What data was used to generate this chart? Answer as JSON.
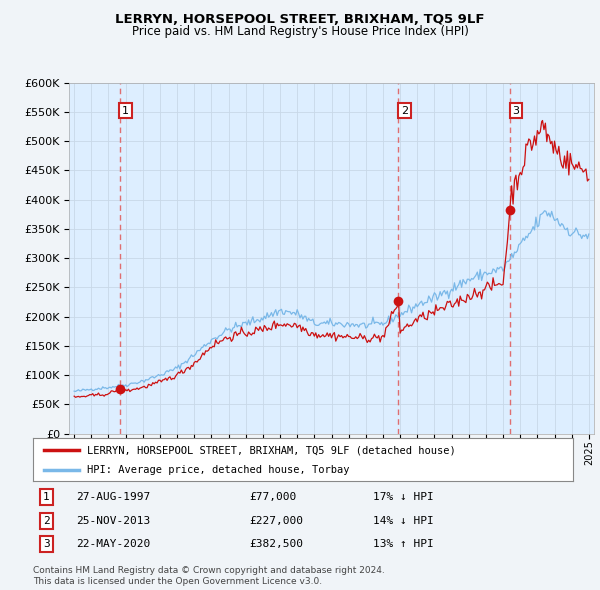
{
  "title": "LERRYN, HORSEPOOL STREET, BRIXHAM, TQ5 9LF",
  "subtitle": "Price paid vs. HM Land Registry's House Price Index (HPI)",
  "ytick_values": [
    0,
    50000,
    100000,
    150000,
    200000,
    250000,
    300000,
    350000,
    400000,
    450000,
    500000,
    550000,
    600000
  ],
  "xlim": [
    1994.7,
    2025.3
  ],
  "ylim": [
    0,
    600000
  ],
  "sale_dates": [
    1997.65,
    2013.9,
    2020.39
  ],
  "sale_prices": [
    77000,
    227000,
    382500
  ],
  "sale_labels": [
    "1",
    "2",
    "3"
  ],
  "sale_hpi_diff": [
    "17% ↓ HPI",
    "14% ↓ HPI",
    "13% ↑ HPI"
  ],
  "sale_date_strs": [
    "27-AUG-1997",
    "25-NOV-2013",
    "22-MAY-2020"
  ],
  "sale_price_strs": [
    "£77,000",
    "£227,000",
    "£382,500"
  ],
  "hpi_color": "#7ab8e8",
  "price_color": "#cc1111",
  "dashed_line_color": "#e06060",
  "legend_label_price": "LERRYN, HORSEPOOL STREET, BRIXHAM, TQ5 9LF (detached house)",
  "legend_label_hpi": "HPI: Average price, detached house, Torbay",
  "footer1": "Contains HM Land Registry data © Crown copyright and database right 2024.",
  "footer2": "This data is licensed under the Open Government Licence v3.0.",
  "background_color": "#f0f4f8",
  "plot_background": "#ddeeff"
}
